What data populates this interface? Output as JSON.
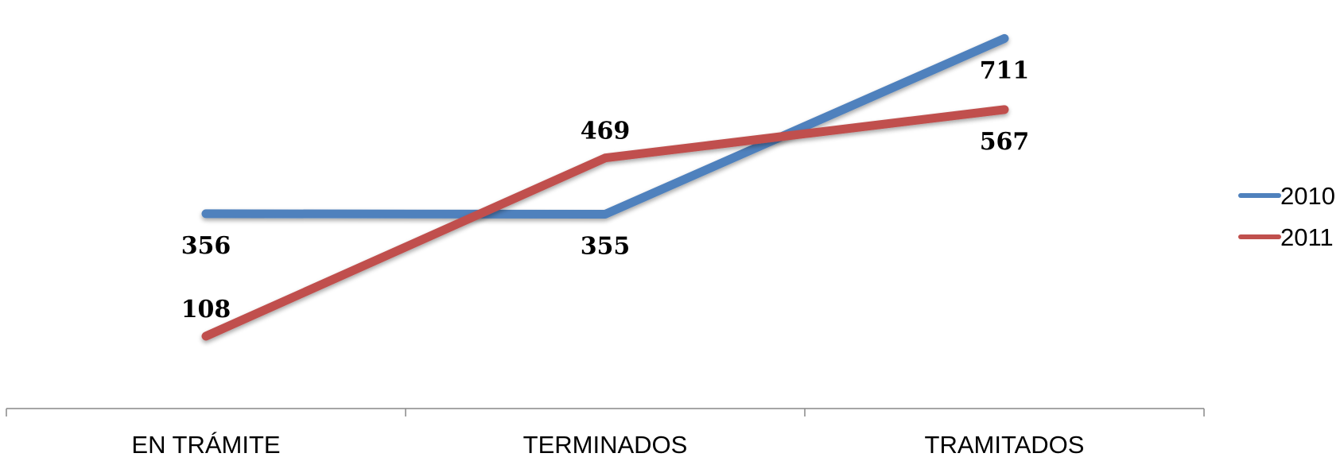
{
  "chart_data": {
    "type": "line",
    "categories": [
      "EN TRÁMITE",
      "TERMINADOS",
      "TRAMITADOS"
    ],
    "series": [
      {
        "name": "2010",
        "values": [
          356,
          355,
          711
        ],
        "color": "#4F81BD"
      },
      {
        "name": "2011",
        "values": [
          108,
          469,
          567
        ],
        "color": "#C0504D"
      }
    ],
    "title": "",
    "xlabel": "",
    "ylabel": "",
    "ylim": [
      0,
      760
    ],
    "grid": false,
    "legend": "right"
  }
}
